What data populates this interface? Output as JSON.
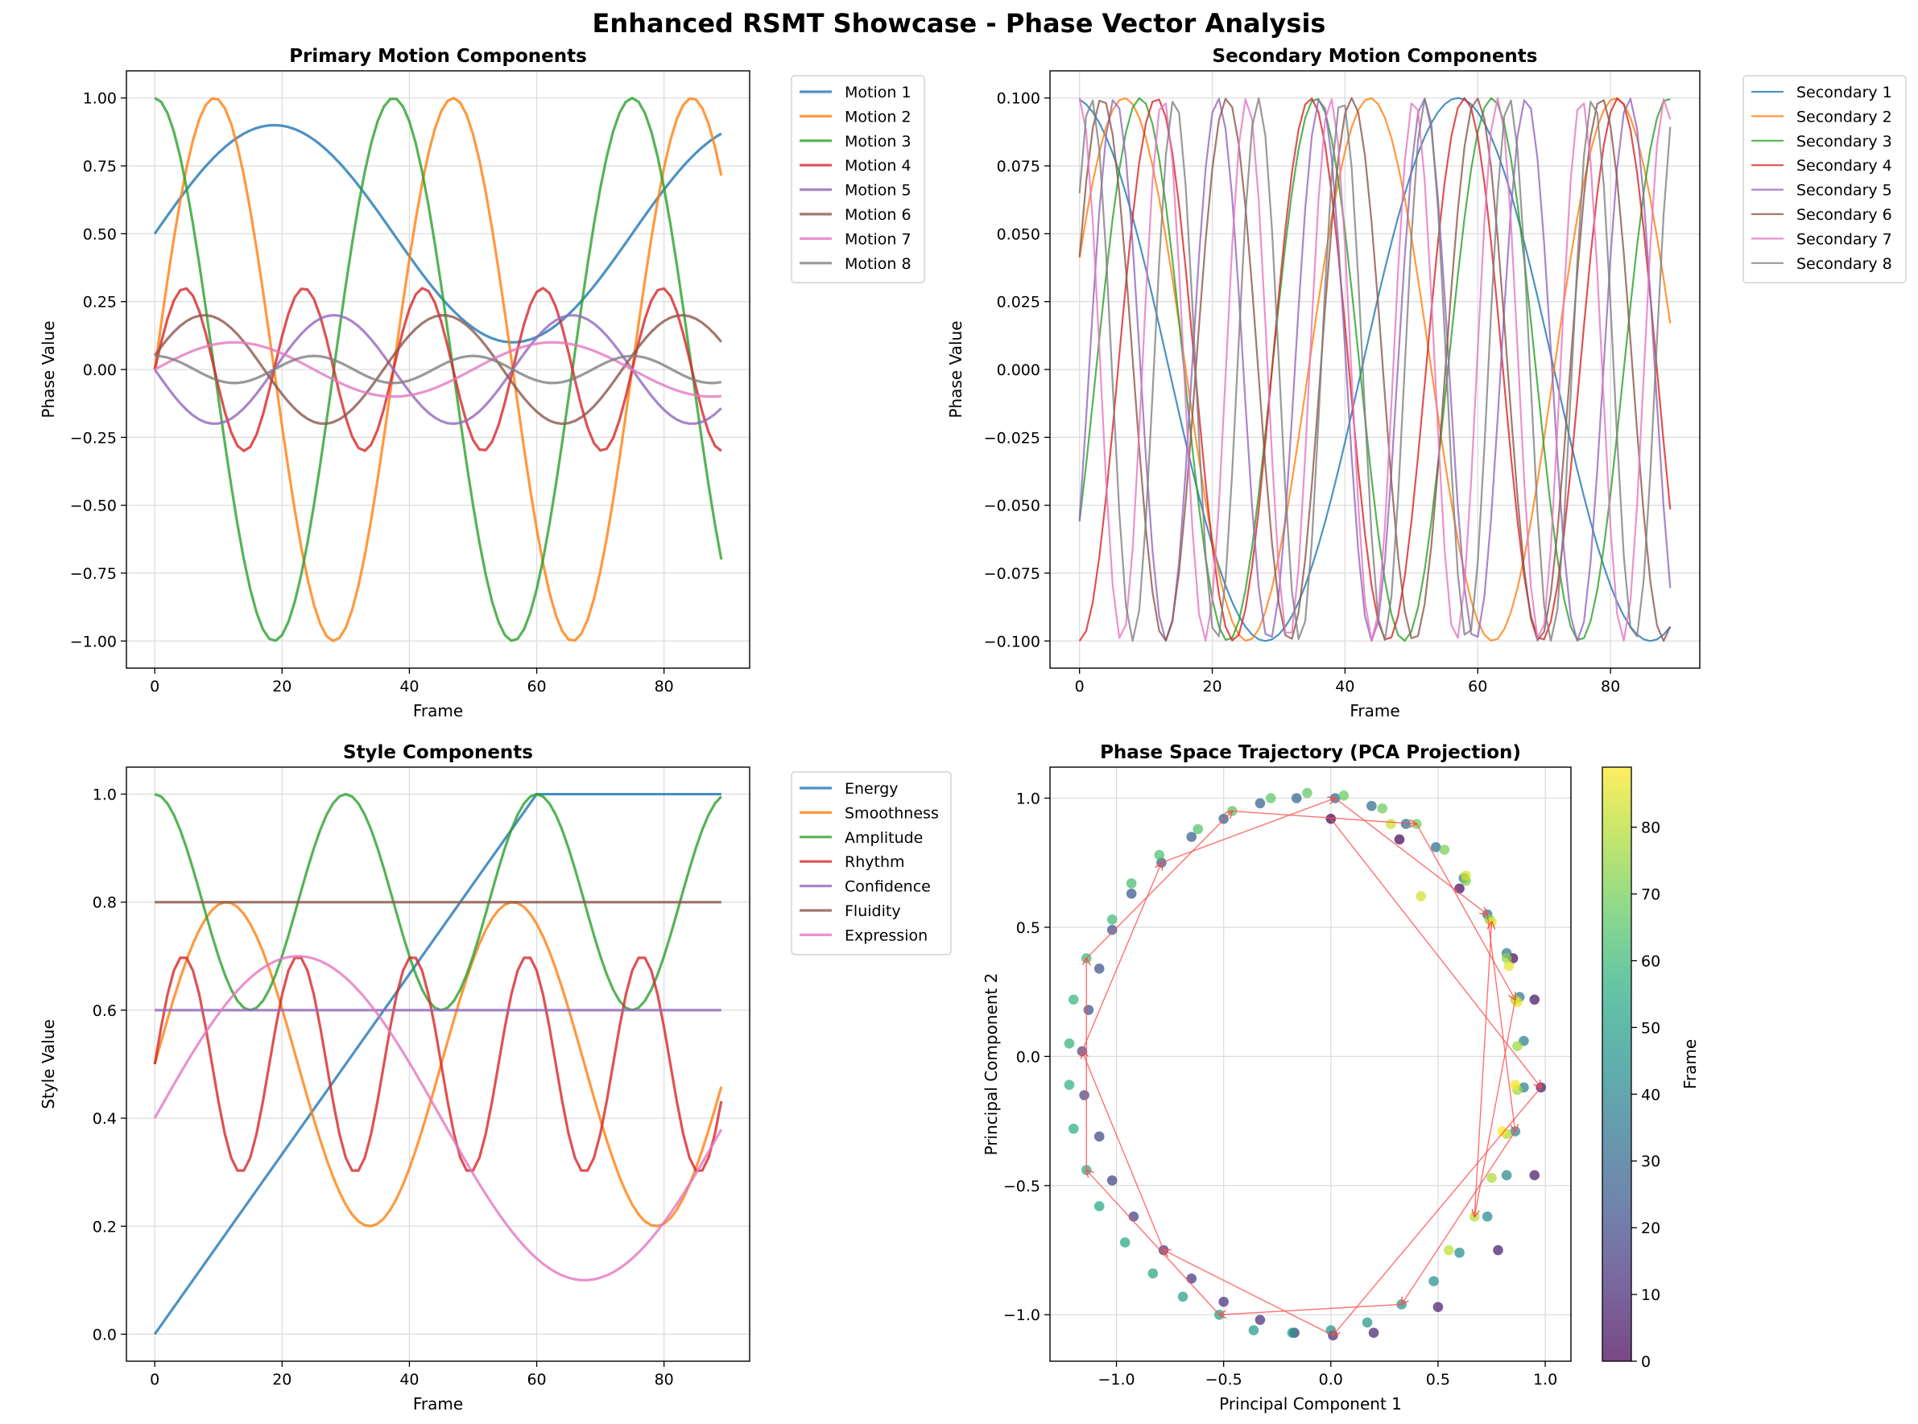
{
  "figure_title": "Enhanced RSMT Showcase - Phase Vector Analysis",
  "palette": [
    "#1f77b4",
    "#ff7f0e",
    "#2ca02c",
    "#d62728",
    "#9467bd",
    "#8c564b",
    "#e377c2",
    "#7f7f7f"
  ],
  "chart_data": [
    {
      "id": "primary",
      "type": "line",
      "title": "Primary Motion Components",
      "xlabel": "Frame",
      "ylabel": "Phase Value",
      "xlim": [
        -4.45,
        93.45
      ],
      "ylim": [
        -1.1,
        1.1
      ],
      "xticks": [
        0,
        20,
        40,
        60,
        80
      ],
      "yticks": [
        -1.0,
        -0.75,
        -0.5,
        -0.25,
        0.0,
        0.25,
        0.5,
        0.75,
        1.0
      ],
      "ytick_labels": [
        "−1.00",
        "−0.75",
        "−0.50",
        "−0.25",
        "0.00",
        "0.25",
        "0.50",
        "0.75",
        "1.00"
      ],
      "grid": true,
      "legend": "outside-upper-right",
      "line_width": 3.2,
      "frames": 90,
      "series": [
        {
          "name": "Motion 1",
          "color": "#1f77b4",
          "func": "sin",
          "amp": 0.4,
          "period": 75,
          "phase": 0,
          "offset": 0.5
        },
        {
          "name": "Motion 2",
          "color": "#ff7f0e",
          "func": "sin",
          "amp": 1.0,
          "period": 37.5,
          "phase": 0,
          "offset": 0
        },
        {
          "name": "Motion 3",
          "color": "#2ca02c",
          "func": "cos",
          "amp": 1.0,
          "period": 37.5,
          "phase": 0,
          "offset": 0
        },
        {
          "name": "Motion 4",
          "color": "#d62728",
          "func": "sin",
          "amp": 0.3,
          "period": 18.75,
          "phase": 0,
          "offset": 0
        },
        {
          "name": "Motion 5",
          "color": "#9467bd",
          "func": "sin",
          "amp": -0.2,
          "period": 37.5,
          "phase": 0,
          "offset": 0
        },
        {
          "name": "Motion 6",
          "color": "#8c564b",
          "func": "sin",
          "amp": 0.2,
          "period": 37.5,
          "phase": 0.2618,
          "offset": 0
        },
        {
          "name": "Motion 7",
          "color": "#e377c2",
          "func": "sin",
          "amp": 0.1,
          "period": 50,
          "phase": 0,
          "offset": 0
        },
        {
          "name": "Motion 8",
          "color": "#7f7f7f",
          "func": "cos",
          "amp": 0.05,
          "period": 25,
          "phase": 0,
          "offset": 0
        }
      ]
    },
    {
      "id": "secondary",
      "type": "line",
      "title": "Secondary Motion Components",
      "xlabel": "Frame",
      "ylabel": "Phase Value",
      "xlim": [
        -4.45,
        93.45
      ],
      "ylim": [
        -0.11,
        0.11
      ],
      "xticks": [
        0,
        20,
        40,
        60,
        80
      ],
      "yticks": [
        -0.1,
        -0.075,
        -0.05,
        -0.025,
        0.0,
        0.025,
        0.05,
        0.075,
        0.1
      ],
      "ytick_labels": [
        "−0.100",
        "−0.075",
        "−0.050",
        "−0.025",
        "0.000",
        "0.025",
        "0.050",
        "0.075",
        "0.100"
      ],
      "grid": true,
      "legend": "outside-upper-right",
      "line_width": 2.2,
      "frames": 90,
      "series": [
        {
          "name": "Secondary 1",
          "color": "#1f77b4",
          "func": "sin",
          "amp": 0.1,
          "period": 58,
          "phase": 1.679,
          "offset": 0
        },
        {
          "name": "Secondary 2",
          "color": "#ff7f0e",
          "func": "sin",
          "amp": 0.1,
          "period": 37,
          "phase": 0.424,
          "offset": 0
        },
        {
          "name": "Secondary 3",
          "color": "#2ca02c",
          "func": "sin",
          "amp": 0.1,
          "period": 26.5,
          "phase": -0.594,
          "offset": 0
        },
        {
          "name": "Secondary 4",
          "color": "#d62728",
          "func": "sin",
          "amp": 0.1,
          "period": 23.2,
          "phase": -1.571,
          "offset": 0
        },
        {
          "name": "Secondary 5",
          "color": "#9467bd",
          "func": "sin",
          "amp": 0.1,
          "period": 15.5,
          "phase": -0.584,
          "offset": 0
        },
        {
          "name": "Secondary 6",
          "color": "#8c564b",
          "func": "sin",
          "amp": 0.1,
          "period": 18.8,
          "phase": 0.428,
          "offset": 0
        },
        {
          "name": "Secondary 7",
          "color": "#e377c2",
          "func": "sin",
          "amp": 0.1,
          "period": 12.6,
          "phase": 1.571,
          "offset": 0
        },
        {
          "name": "Secondary 8",
          "color": "#7f7f7f",
          "func": "sin",
          "amp": 0.1,
          "period": 12.6,
          "phase": 0.707,
          "offset": 0
        }
      ]
    },
    {
      "id": "style",
      "type": "line",
      "title": "Style Components",
      "xlabel": "Frame",
      "ylabel": "Style Value",
      "xlim": [
        -4.45,
        93.45
      ],
      "ylim": [
        -0.05,
        1.05
      ],
      "xticks": [
        0,
        20,
        40,
        60,
        80
      ],
      "yticks": [
        0.0,
        0.2,
        0.4,
        0.6,
        0.8,
        1.0
      ],
      "ytick_labels": [
        "0.0",
        "0.2",
        "0.4",
        "0.6",
        "0.8",
        "1.0"
      ],
      "grid": true,
      "legend": "outside-upper-right",
      "line_width": 3.2,
      "frames": 90,
      "series": [
        {
          "name": "Energy",
          "color": "#1f77b4",
          "func": "ramp",
          "slope": 0.01667,
          "cap": 1.0
        },
        {
          "name": "Smoothness",
          "color": "#ff7f0e",
          "func": "sin",
          "amp": 0.3,
          "period": 45,
          "phase": 0,
          "offset": 0.5
        },
        {
          "name": "Amplitude",
          "color": "#2ca02c",
          "func": "cos",
          "amp": 0.2,
          "period": 30,
          "phase": 0,
          "offset": 0.8
        },
        {
          "name": "Rhythm",
          "color": "#d62728",
          "func": "sin",
          "amp": 0.2,
          "period": 18,
          "phase": 0,
          "offset": 0.5
        },
        {
          "name": "Confidence",
          "color": "#9467bd",
          "func": "const",
          "value": 0.6
        },
        {
          "name": "Fluidity",
          "color": "#8c564b",
          "func": "const",
          "value": 0.8
        },
        {
          "name": "Expression",
          "color": "#e377c2",
          "func": "sin",
          "amp": 0.3,
          "period": 90,
          "phase": 0,
          "offset": 0.4
        }
      ]
    },
    {
      "id": "pca",
      "type": "scatter",
      "title": "Phase Space Trajectory (PCA Projection)",
      "xlabel": "Principal Component 1",
      "ylabel": "Principal Component 2",
      "xlim": [
        -1.31,
        1.12
      ],
      "ylim": [
        -1.18,
        1.12
      ],
      "xticks": [
        -1.0,
        -0.5,
        0.0,
        0.5,
        1.0
      ],
      "xtick_labels": [
        "−1.0",
        "−0.5",
        "0.0",
        "0.5",
        "1.0"
      ],
      "yticks": [
        -1.0,
        -0.5,
        0.0,
        0.5,
        1.0
      ],
      "ytick_labels": [
        "−1.0",
        "−0.5",
        "0.0",
        "0.5",
        "1.0"
      ],
      "grid": true,
      "colormap": "viridis",
      "colorbar_label": "Frame",
      "colorbar_range": [
        0,
        89
      ],
      "colorbar_ticks": [
        0,
        10,
        20,
        30,
        40,
        50,
        60,
        70,
        80
      ],
      "arrow_color": "#ff4d4d",
      "arrow_step": 5,
      "points": [
        {
          "frame": 0,
          "x": 0.0,
          "y": 0.92
        },
        {
          "frame": 1,
          "x": 0.32,
          "y": 0.84
        },
        {
          "frame": 2,
          "x": 0.6,
          "y": 0.65
        },
        {
          "frame": 3,
          "x": 0.85,
          "y": 0.38
        },
        {
          "frame": 4,
          "x": 0.95,
          "y": 0.22
        },
        {
          "frame": 5,
          "x": 0.98,
          "y": -0.12
        },
        {
          "frame": 6,
          "x": 0.95,
          "y": -0.46
        },
        {
          "frame": 7,
          "x": 0.78,
          "y": -0.75
        },
        {
          "frame": 8,
          "x": 0.5,
          "y": -0.97
        },
        {
          "frame": 9,
          "x": 0.2,
          "y": -1.07
        },
        {
          "frame": 10,
          "x": 0.01,
          "y": -1.08
        },
        {
          "frame": 11,
          "x": -0.17,
          "y": -1.07
        },
        {
          "frame": 12,
          "x": -0.33,
          "y": -1.02
        },
        {
          "frame": 13,
          "x": -0.5,
          "y": -0.95
        },
        {
          "frame": 14,
          "x": -0.65,
          "y": -0.86
        },
        {
          "frame": 15,
          "x": -0.78,
          "y": -0.75
        },
        {
          "frame": 16,
          "x": -0.92,
          "y": -0.62
        },
        {
          "frame": 17,
          "x": -1.02,
          "y": -0.48
        },
        {
          "frame": 18,
          "x": -1.08,
          "y": -0.31
        },
        {
          "frame": 19,
          "x": -1.15,
          "y": -0.15
        },
        {
          "frame": 20,
          "x": -1.16,
          "y": 0.02
        },
        {
          "frame": 21,
          "x": -1.13,
          "y": 0.18
        },
        {
          "frame": 22,
          "x": -1.08,
          "y": 0.34
        },
        {
          "frame": 23,
          "x": -1.02,
          "y": 0.49
        },
        {
          "frame": 24,
          "x": -0.93,
          "y": 0.63
        },
        {
          "frame": 25,
          "x": -0.79,
          "y": 0.75
        },
        {
          "frame": 26,
          "x": -0.65,
          "y": 0.85
        },
        {
          "frame": 27,
          "x": -0.5,
          "y": 0.92
        },
        {
          "frame": 28,
          "x": -0.33,
          "y": 0.98
        },
        {
          "frame": 29,
          "x": -0.16,
          "y": 1.0
        },
        {
          "frame": 30,
          "x": 0.02,
          "y": 1.0
        },
        {
          "frame": 31,
          "x": 0.19,
          "y": 0.97
        },
        {
          "frame": 32,
          "x": 0.35,
          "y": 0.9
        },
        {
          "frame": 33,
          "x": 0.49,
          "y": 0.81
        },
        {
          "frame": 34,
          "x": 0.62,
          "y": 0.69
        },
        {
          "frame": 35,
          "x": 0.73,
          "y": 0.55
        },
        {
          "frame": 36,
          "x": 0.82,
          "y": 0.4
        },
        {
          "frame": 37,
          "x": 0.88,
          "y": 0.23
        },
        {
          "frame": 38,
          "x": 0.9,
          "y": 0.06
        },
        {
          "frame": 39,
          "x": 0.9,
          "y": -0.12
        },
        {
          "frame": 40,
          "x": 0.86,
          "y": -0.29
        },
        {
          "frame": 41,
          "x": 0.82,
          "y": -0.46
        },
        {
          "frame": 42,
          "x": 0.73,
          "y": -0.62
        },
        {
          "frame": 43,
          "x": 0.6,
          "y": -0.76
        },
        {
          "frame": 44,
          "x": 0.48,
          "y": -0.87
        },
        {
          "frame": 45,
          "x": 0.33,
          "y": -0.96
        },
        {
          "frame": 46,
          "x": 0.17,
          "y": -1.03
        },
        {
          "frame": 47,
          "x": 0.0,
          "y": -1.06
        },
        {
          "frame": 48,
          "x": -0.18,
          "y": -1.07
        },
        {
          "frame": 49,
          "x": -0.36,
          "y": -1.06
        },
        {
          "frame": 50,
          "x": -0.52,
          "y": -1.0
        },
        {
          "frame": 51,
          "x": -0.69,
          "y": -0.93
        },
        {
          "frame": 52,
          "x": -0.83,
          "y": -0.84
        },
        {
          "frame": 53,
          "x": -0.96,
          "y": -0.72
        },
        {
          "frame": 54,
          "x": -1.08,
          "y": -0.58
        },
        {
          "frame": 55,
          "x": -1.14,
          "y": -0.44
        },
        {
          "frame": 56,
          "x": -1.2,
          "y": -0.28
        },
        {
          "frame": 57,
          "x": -1.22,
          "y": -0.11
        },
        {
          "frame": 58,
          "x": -1.22,
          "y": 0.05
        },
        {
          "frame": 59,
          "x": -1.2,
          "y": 0.22
        },
        {
          "frame": 60,
          "x": -1.14,
          "y": 0.38
        },
        {
          "frame": 61,
          "x": -1.02,
          "y": 0.53
        },
        {
          "frame": 62,
          "x": -0.93,
          "y": 0.67
        },
        {
          "frame": 63,
          "x": -0.8,
          "y": 0.78
        },
        {
          "frame": 64,
          "x": -0.62,
          "y": 0.88
        },
        {
          "frame": 65,
          "x": -0.46,
          "y": 0.95
        },
        {
          "frame": 66,
          "x": -0.28,
          "y": 1.0
        },
        {
          "frame": 67,
          "x": -0.11,
          "y": 1.02
        },
        {
          "frame": 68,
          "x": 0.06,
          "y": 1.01
        },
        {
          "frame": 69,
          "x": 0.24,
          "y": 0.96
        },
        {
          "frame": 70,
          "x": 0.4,
          "y": 0.9
        },
        {
          "frame": 71,
          "x": 0.53,
          "y": 0.8
        },
        {
          "frame": 72,
          "x": 0.63,
          "y": 0.68
        },
        {
          "frame": 73,
          "x": 0.74,
          "y": 0.53
        },
        {
          "frame": 74,
          "x": 0.82,
          "y": 0.38
        },
        {
          "frame": 75,
          "x": 0.86,
          "y": 0.22
        },
        {
          "frame": 76,
          "x": 0.87,
          "y": 0.04
        },
        {
          "frame": 77,
          "x": 0.87,
          "y": -0.13
        },
        {
          "frame": 78,
          "x": 0.82,
          "y": -0.3
        },
        {
          "frame": 79,
          "x": 0.75,
          "y": -0.47
        },
        {
          "frame": 80,
          "x": 0.67,
          "y": -0.62
        },
        {
          "frame": 81,
          "x": 0.55,
          "y": -0.75
        },
        {
          "frame": 82,
          "x": 0.28,
          "y": 0.9
        },
        {
          "frame": 83,
          "x": 0.42,
          "y": 0.62
        },
        {
          "frame": 84,
          "x": 0.63,
          "y": 0.7
        },
        {
          "frame": 85,
          "x": 0.75,
          "y": 0.52
        },
        {
          "frame": 86,
          "x": 0.83,
          "y": 0.35
        },
        {
          "frame": 87,
          "x": 0.87,
          "y": 0.21
        },
        {
          "frame": 88,
          "x": 0.86,
          "y": -0.11
        },
        {
          "frame": 89,
          "x": 0.8,
          "y": -0.29
        }
      ]
    }
  ]
}
